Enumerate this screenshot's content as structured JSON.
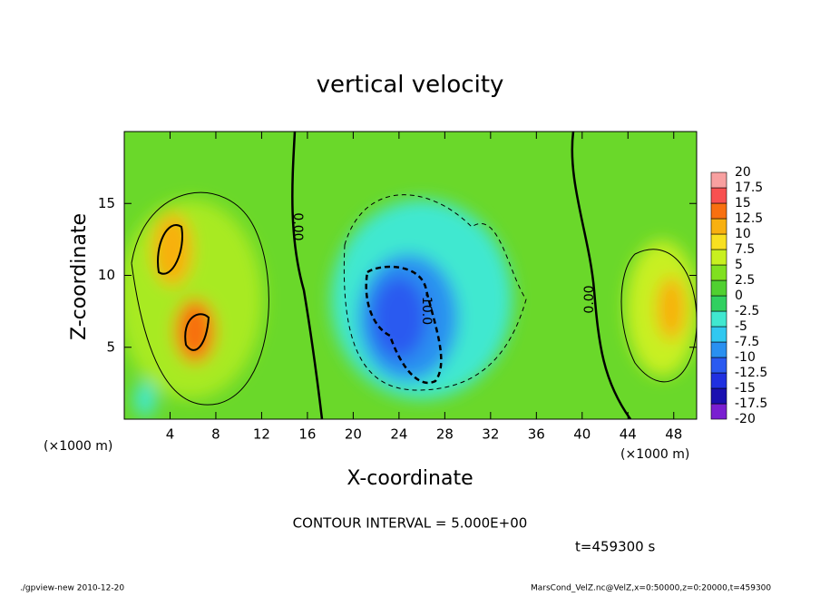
{
  "chart_data": {
    "type": "contour",
    "title": "vertical velocity",
    "x_label": "X-coordinate",
    "y_label": "Z-coordinate",
    "x_unit": "(×1000 m)",
    "y_unit": "(×1000 m)",
    "xlim": [
      0,
      50
    ],
    "xticks": [
      4,
      8,
      12,
      16,
      20,
      24,
      28,
      32,
      36,
      40,
      44,
      48
    ],
    "ylim": [
      0,
      20
    ],
    "yticks": [
      5,
      10,
      15
    ],
    "contour_labels": [
      "0.00",
      "0.00",
      "-10.0"
    ],
    "colorbar": {
      "levels": [
        -20,
        -17.5,
        -15,
        -12.5,
        -10,
        -7.5,
        -5,
        -2.5,
        0,
        2.5,
        5,
        7.5,
        10,
        12.5,
        15,
        17.5,
        20
      ],
      "colors": [
        "#7a1fd1",
        "#1a10b0",
        "#2030e0",
        "#2a5af0",
        "#2a90f0",
        "#30c8f0",
        "#40e8d0",
        "#30d060",
        "#50d030",
        "#80e020",
        "#c8f020",
        "#f8e020",
        "#f8b010",
        "#f87010",
        "#f85050",
        "#f8a0a0"
      ]
    },
    "contour_interval": "CONTOUR INTERVAL = 5.000E+00",
    "time": "t=459300 s",
    "footer_left": "./gpview-new  2010-12-20",
    "footer_right": "MarsCond_VelZ.nc@VelZ,x=0:50000,z=0:20000,t=459300"
  }
}
